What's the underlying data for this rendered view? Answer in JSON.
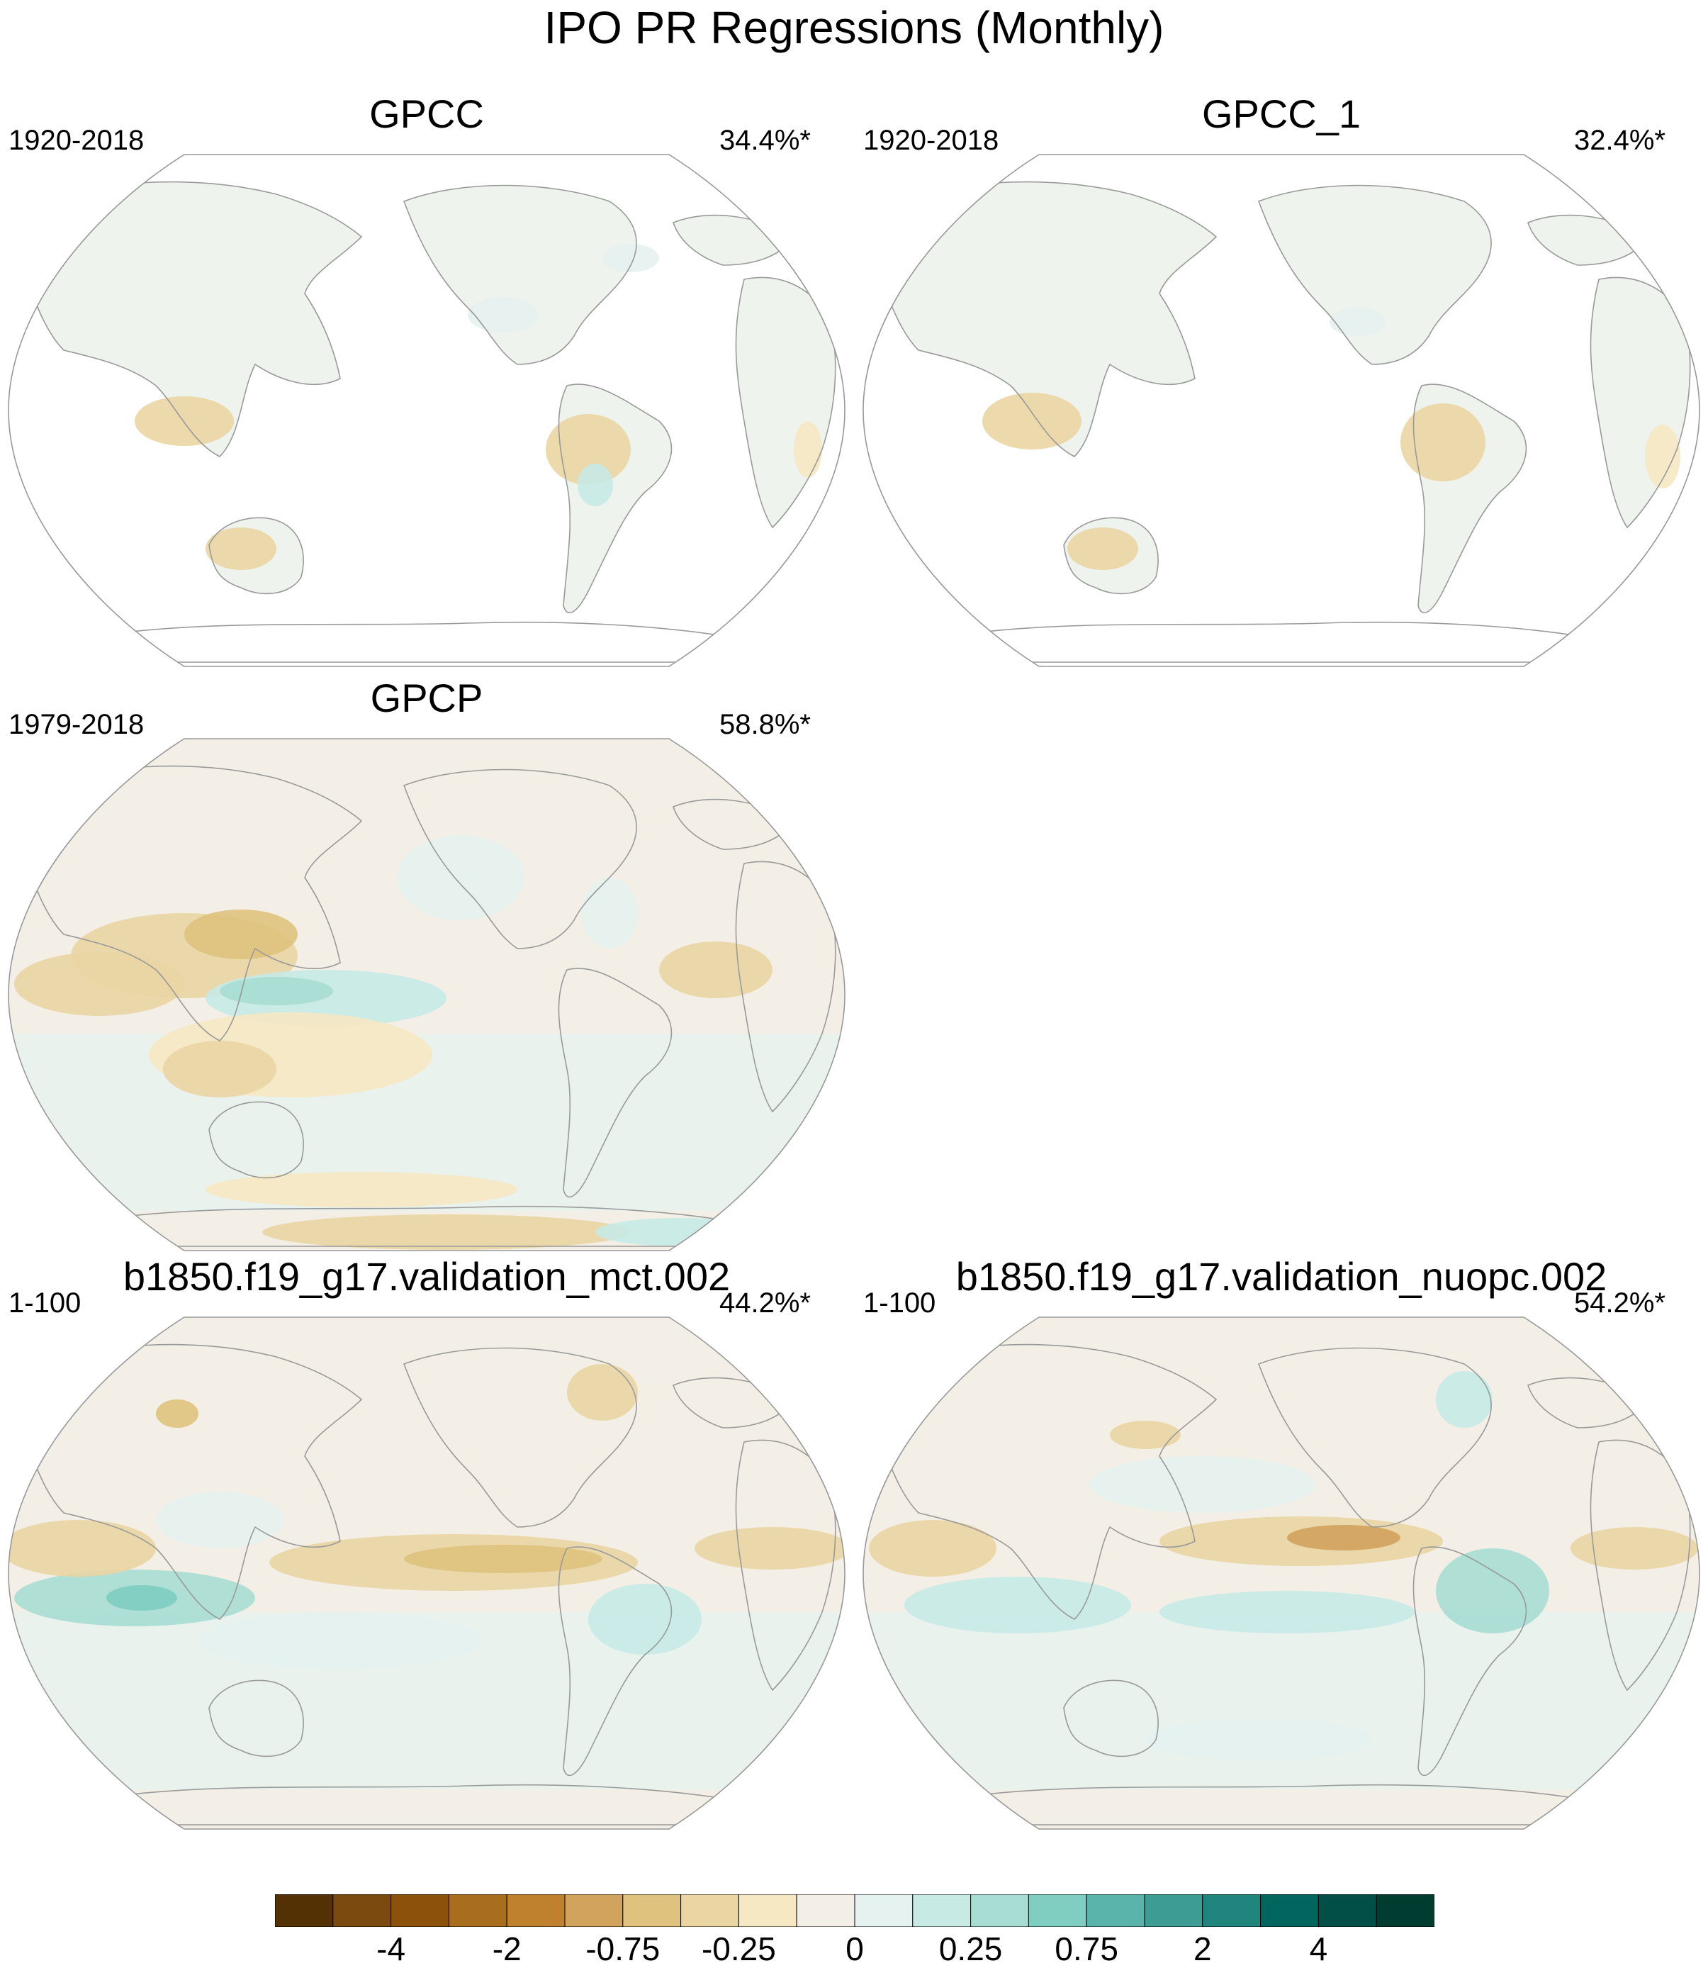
{
  "title": "IPO PR Regressions (Monthly)",
  "panels": [
    {
      "id": "gpcc",
      "title": "GPCC",
      "period": "1920-2018",
      "pct": "34.4%*",
      "coverage": "land"
    },
    {
      "id": "gpcc1",
      "title": "GPCC_1",
      "period": "1920-2018",
      "pct": "32.4%*",
      "coverage": "land"
    },
    {
      "id": "gpcp",
      "title": "GPCP",
      "period": "1979-2018",
      "pct": "58.8%*",
      "coverage": "global"
    },
    {
      "id": "mct",
      "title": "b1850.f19_g17.validation_mct.002",
      "period": "1-100",
      "pct": "44.2%*",
      "coverage": "global"
    },
    {
      "id": "nuopc",
      "title": "b1850.f19_g17.validation_nuopc.002",
      "period": "1-100",
      "pct": "54.2%*",
      "coverage": "global"
    }
  ],
  "colorbar": {
    "colors": [
      "#543005",
      "#7a4a0f",
      "#8c510a",
      "#a96d1e",
      "#bf812d",
      "#d1a35c",
      "#dfc27d",
      "#ead5a3",
      "#f6e8c3",
      "#f4efe6",
      "#e6f2ef",
      "#c7eae5",
      "#a7ddd3",
      "#80cdc1",
      "#5ab4ac",
      "#3d9c94",
      "#20857d",
      "#01665e",
      "#024f48",
      "#003c30"
    ],
    "tick_labels": [
      "-4",
      "-2",
      "-0.75",
      "-0.25",
      "0",
      "0.25",
      "0.75",
      "2",
      "4"
    ]
  },
  "colors": {
    "ocean_neutral": "#f4efe6",
    "ocean_cool": "#e6f2ef",
    "land_outline": "#9a9a9a",
    "frame": "#999999"
  }
}
